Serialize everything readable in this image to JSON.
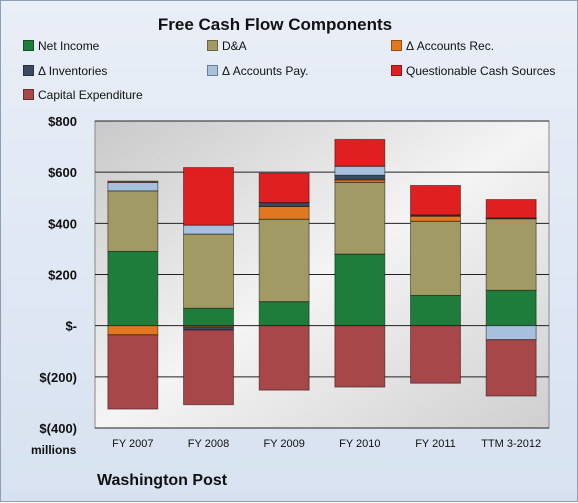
{
  "chart_data": {
    "type": "bar",
    "stacked": true,
    "title": "Free Cash Flow Components",
    "units_label": "millions",
    "company": "Washington Post",
    "categories": [
      "FY 2007",
      "FY 2008",
      "FY 2009",
      "FY 2010",
      "FY 2011",
      "TTM 3-2012"
    ],
    "ylim": [
      -400,
      800
    ],
    "yticks": [
      800,
      600,
      400,
      200,
      0,
      -200,
      -400
    ],
    "ytick_labels": [
      "$800",
      "$600",
      "$400",
      "$200",
      "$-",
      "$(200)",
      "$(400)"
    ],
    "grid": true,
    "legend_position": "top",
    "series": [
      {
        "name": "Net Income",
        "color": "#1e7d3a",
        "values": [
          290,
          68,
          94,
          280,
          118,
          138
        ]
      },
      {
        "name": "D&A",
        "color": "#a19a64",
        "values": [
          237,
          290,
          322,
          280,
          290,
          280
        ]
      },
      {
        "name": "Δ Accounts Rec.",
        "color": "#e07820",
        "values": [
          -36,
          -5,
          50,
          10,
          20,
          0
        ]
      },
      {
        "name": "Δ Inventories",
        "color": "#3b4a60",
        "values": [
          0,
          -12,
          15,
          18,
          5,
          3
        ]
      },
      {
        "name": "Δ Accounts Pay.",
        "color": "#a6c0de",
        "values": [
          33,
          35,
          0,
          35,
          0,
          -55
        ]
      },
      {
        "name": "Questionable Cash Sources",
        "color": "#e02020",
        "values": [
          5,
          225,
          115,
          105,
          115,
          72
        ]
      },
      {
        "name": "Capital Expenditure",
        "color": "#a8474a",
        "values": [
          -290,
          -292,
          -252,
          -240,
          -225,
          -220
        ]
      }
    ]
  }
}
